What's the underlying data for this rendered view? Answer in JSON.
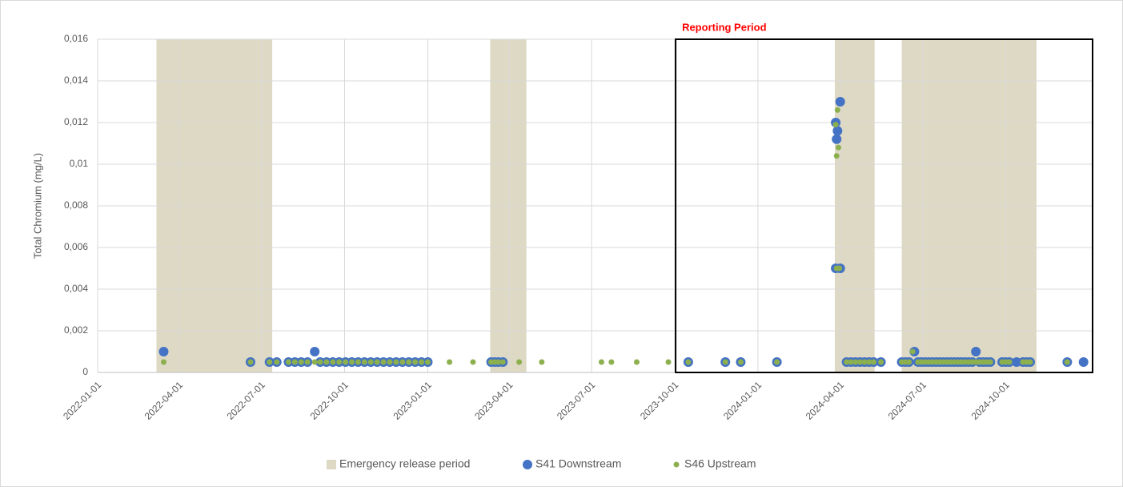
{
  "chart_data": {
    "type": "scatter",
    "y_label": "Total Chromium (mg/L)",
    "annotation": "Reporting Period",
    "reporting_period": {
      "start": "2023-10-02",
      "end": "2025-01-05",
      "color": "#000000"
    },
    "shaded": {
      "name": "Emergency release period",
      "color": "#ddd9c4",
      "periods": [
        [
          "2022-03-07",
          "2022-07-13"
        ],
        [
          "2023-03-11",
          "2023-04-20"
        ],
        [
          "2024-03-26",
          "2024-05-09"
        ],
        [
          "2024-06-08",
          "2024-11-04"
        ]
      ]
    },
    "xlim": [
      "2022-01-01",
      "2025-01-05"
    ],
    "xticks": [
      "2022-01-01",
      "2022-04-01",
      "2022-07-01",
      "2022-10-01",
      "2023-01-01",
      "2023-04-01",
      "2023-07-01",
      "2023-10-01",
      "2024-01-01",
      "2024-04-01",
      "2024-07-01",
      "2024-10-01"
    ],
    "ylim": [
      0,
      0.016
    ],
    "yticks": [
      0,
      {
        "value": 0.002,
        "label": "0,002"
      },
      {
        "value": 0.004,
        "label": "0,004"
      },
      {
        "value": 0.006,
        "label": "0,006"
      },
      {
        "value": 0.008,
        "label": "0,008"
      },
      {
        "value": 0.01,
        "label": "0,01"
      },
      {
        "value": 0.012,
        "label": "0,012"
      },
      {
        "value": 0.014,
        "label": "0,014"
      },
      {
        "value": 0.016,
        "label": "0,016"
      }
    ],
    "grid": true,
    "legend": "bottom",
    "series": [
      {
        "name": "S41 Downstream",
        "color": "#4472c4",
        "size": 6,
        "x": [
          "2022-03-15",
          "2022-06-19",
          "2022-07-10",
          "2022-07-18",
          "2022-07-31",
          "2022-08-07",
          "2022-08-14",
          "2022-08-21",
          "2022-08-29",
          "2022-09-04",
          "2022-09-11",
          "2022-09-18",
          "2022-09-25",
          "2022-10-02",
          "2022-10-09",
          "2022-10-16",
          "2022-10-23",
          "2022-10-30",
          "2022-11-06",
          "2022-11-13",
          "2022-11-20",
          "2022-11-27",
          "2022-12-04",
          "2022-12-11",
          "2022-12-18",
          "2022-12-25",
          "2023-01-01",
          "2023-03-12",
          "2023-03-16",
          "2023-03-20",
          "2023-03-25",
          "2023-10-16",
          "2023-11-26",
          "2023-12-13",
          "2024-01-22",
          "2024-03-27",
          "2024-03-28",
          "2024-03-29",
          "2024-03-27",
          "2024-04-01",
          "2024-04-01",
          "2024-04-08",
          "2024-04-13",
          "2024-04-18",
          "2024-04-23",
          "2024-04-28",
          "2024-05-03",
          "2024-05-08",
          "2024-05-16",
          "2024-06-08",
          "2024-06-12",
          "2024-06-16",
          "2024-06-22",
          "2024-06-26",
          "2024-06-30",
          "2024-07-04",
          "2024-07-08",
          "2024-07-12",
          "2024-07-16",
          "2024-07-20",
          "2024-07-24",
          "2024-07-28",
          "2024-08-01",
          "2024-08-05",
          "2024-08-09",
          "2024-08-13",
          "2024-08-17",
          "2024-08-21",
          "2024-08-25",
          "2024-08-29",
          "2024-09-02",
          "2024-09-06",
          "2024-09-10",
          "2024-09-14",
          "2024-09-27",
          "2024-10-01",
          "2024-10-05",
          "2024-10-13",
          "2024-10-20",
          "2024-10-24",
          "2024-10-28",
          "2024-12-08",
          "2024-12-26"
        ],
        "values": [
          0.001,
          0.0005,
          0.0005,
          0.0005,
          0.0005,
          0.0005,
          0.0005,
          0.0005,
          0.001,
          0.0005,
          0.0005,
          0.0005,
          0.0005,
          0.0005,
          0.0005,
          0.0005,
          0.0005,
          0.0005,
          0.0005,
          0.0005,
          0.0005,
          0.0005,
          0.0005,
          0.0005,
          0.0005,
          0.0005,
          0.0005,
          0.0005,
          0.0005,
          0.0005,
          0.0005,
          0.0005,
          0.0005,
          0.0005,
          0.0005,
          0.012,
          0.0112,
          0.0116,
          0.005,
          0.013,
          0.005,
          0.0005,
          0.0005,
          0.0005,
          0.0005,
          0.0005,
          0.0005,
          0.0005,
          0.0005,
          0.0005,
          0.0005,
          0.0005,
          0.001,
          0.0005,
          0.0005,
          0.0005,
          0.0005,
          0.0005,
          0.0005,
          0.0005,
          0.0005,
          0.0005,
          0.0005,
          0.0005,
          0.0005,
          0.0005,
          0.0005,
          0.0005,
          0.0005,
          0.001,
          0.0005,
          0.0005,
          0.0005,
          0.0005,
          0.0005,
          0.0005,
          0.0005,
          0.0005,
          0.0005,
          0.0005,
          0.0005,
          0.0005,
          0.0005
        ]
      },
      {
        "name": "S46 Upstream",
        "color": "#8db04f",
        "size": 3.5,
        "x": [
          "2022-03-15",
          "2022-06-19",
          "2022-07-10",
          "2022-07-18",
          "2022-07-31",
          "2022-08-07",
          "2022-08-14",
          "2022-08-21",
          "2022-08-29",
          "2022-09-04",
          "2022-09-11",
          "2022-09-18",
          "2022-09-25",
          "2022-10-02",
          "2022-10-09",
          "2022-10-16",
          "2022-10-23",
          "2022-10-30",
          "2022-11-06",
          "2022-11-13",
          "2022-11-20",
          "2022-11-27",
          "2022-12-04",
          "2022-12-11",
          "2022-12-18",
          "2022-12-25",
          "2023-01-01",
          "2023-01-25",
          "2023-02-20",
          "2023-03-12",
          "2023-03-16",
          "2023-03-20",
          "2023-03-25",
          "2023-04-12",
          "2023-05-07",
          "2023-07-12",
          "2023-07-23",
          "2023-08-20",
          "2023-09-24",
          "2023-10-16",
          "2023-11-26",
          "2023-12-13",
          "2024-01-22",
          "2024-03-27",
          "2024-03-28",
          "2024-03-29",
          "2024-03-30",
          "2024-03-28",
          "2024-03-31",
          "2024-04-08",
          "2024-04-13",
          "2024-04-18",
          "2024-04-23",
          "2024-04-28",
          "2024-05-03",
          "2024-05-08",
          "2024-05-16",
          "2024-06-08",
          "2024-06-12",
          "2024-06-16",
          "2024-06-20",
          "2024-06-26",
          "2024-06-30",
          "2024-07-04",
          "2024-07-08",
          "2024-07-12",
          "2024-07-16",
          "2024-07-20",
          "2024-07-24",
          "2024-07-28",
          "2024-08-01",
          "2024-08-05",
          "2024-08-09",
          "2024-08-13",
          "2024-08-17",
          "2024-08-21",
          "2024-08-25",
          "2024-08-29",
          "2024-09-02",
          "2024-09-06",
          "2024-09-10",
          "2024-09-14",
          "2024-09-27",
          "2024-10-01",
          "2024-10-05",
          "2024-10-20",
          "2024-10-24",
          "2024-10-28",
          "2024-12-08"
        ],
        "values": [
          0.0005,
          0.0005,
          0.0005,
          0.0005,
          0.0005,
          0.0005,
          0.0005,
          0.0005,
          0.0005,
          0.0005,
          0.0005,
          0.0005,
          0.0005,
          0.0005,
          0.0005,
          0.0005,
          0.0005,
          0.0005,
          0.0005,
          0.0005,
          0.0005,
          0.0005,
          0.0005,
          0.0005,
          0.0005,
          0.0005,
          0.0005,
          0.0005,
          0.0005,
          0.0005,
          0.0005,
          0.0005,
          0.0005,
          0.0005,
          0.0005,
          0.0005,
          0.0005,
          0.0005,
          0.0005,
          0.0005,
          0.0005,
          0.0005,
          0.0005,
          0.0119,
          0.0104,
          0.0126,
          0.0108,
          0.005,
          0.005,
          0.0005,
          0.0005,
          0.0005,
          0.0005,
          0.0005,
          0.0005,
          0.0005,
          0.0005,
          0.0005,
          0.0005,
          0.0005,
          0.001,
          0.0005,
          0.0005,
          0.0005,
          0.0005,
          0.0005,
          0.0005,
          0.0005,
          0.0005,
          0.0005,
          0.0005,
          0.0005,
          0.0005,
          0.0005,
          0.0005,
          0.0005,
          0.0005,
          0.0005,
          0.0005,
          0.0005,
          0.0005,
          0.0005,
          0.0005,
          0.0005,
          0.0005,
          0.0005,
          0.0005,
          0.0005,
          0.0005
        ]
      }
    ]
  }
}
